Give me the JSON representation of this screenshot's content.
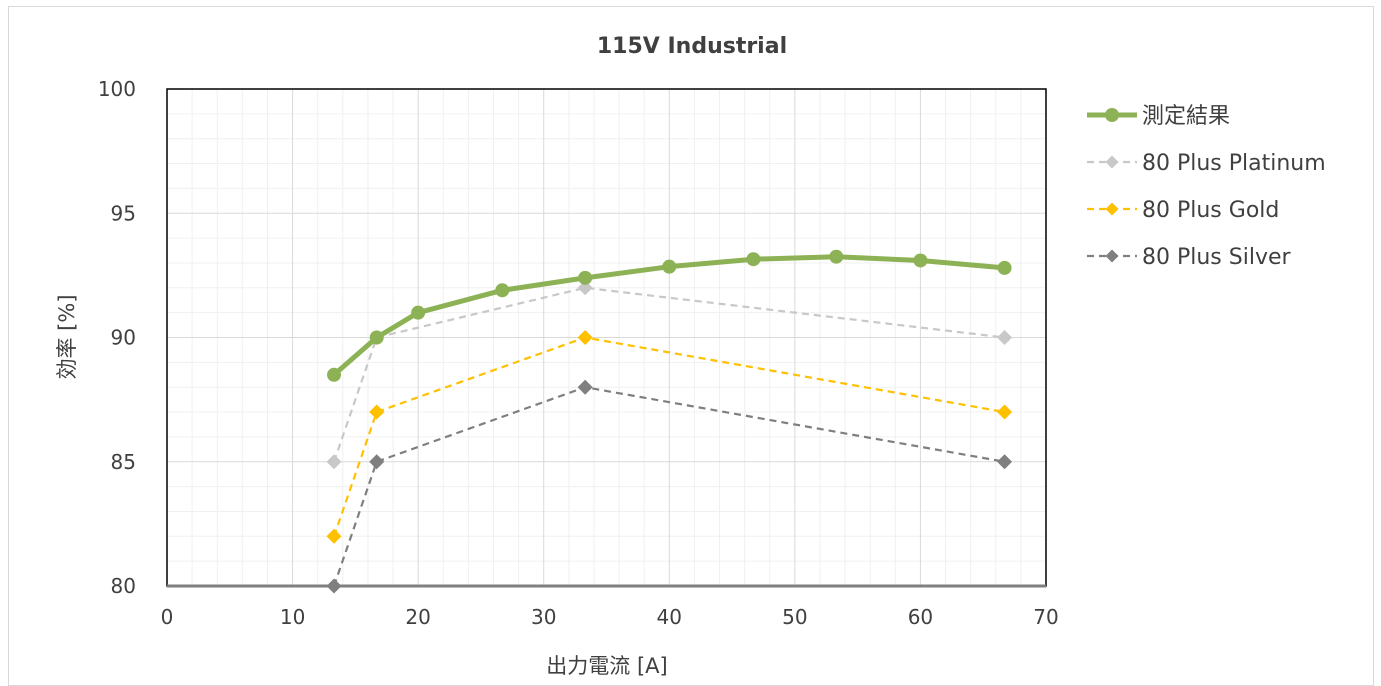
{
  "chart_data": {
    "type": "line",
    "title": "115V Industrial",
    "xlabel": "出力電流 [A]",
    "ylabel": "効率 [%]",
    "xlim": [
      0,
      70
    ],
    "ylim": [
      80,
      100
    ],
    "x_ticks": [
      0,
      10,
      20,
      30,
      40,
      50,
      60,
      70
    ],
    "y_ticks": [
      80,
      85,
      90,
      95,
      100
    ],
    "grid": true,
    "legend_position": "right",
    "series": [
      {
        "name": "測定結果",
        "color": "#8db255",
        "style": "solid",
        "marker": "circle",
        "x": [
          13.3,
          16.7,
          20,
          26.7,
          33.3,
          40,
          46.7,
          53.3,
          60,
          66.7
        ],
        "y": [
          88.5,
          90,
          91,
          91.9,
          92.4,
          92.85,
          93.15,
          93.25,
          93.1,
          92.8
        ]
      },
      {
        "name": "80 Plus Platinum",
        "color": "#c8c8c8",
        "style": "dashed",
        "marker": "diamond",
        "x": [
          13.3,
          16.7,
          33.3,
          66.7
        ],
        "y": [
          85,
          90,
          92,
          90
        ]
      },
      {
        "name": "80 Plus Gold",
        "color": "#ffc000",
        "style": "dashed",
        "marker": "diamond",
        "x": [
          13.3,
          16.7,
          33.3,
          66.7
        ],
        "y": [
          82,
          87,
          90,
          87
        ]
      },
      {
        "name": "80 Plus Silver",
        "color": "#7f7f7f",
        "style": "dashed",
        "marker": "diamond",
        "x": [
          13.3,
          16.7,
          33.3,
          66.7
        ],
        "y": [
          80,
          85,
          88,
          85
        ]
      }
    ]
  }
}
